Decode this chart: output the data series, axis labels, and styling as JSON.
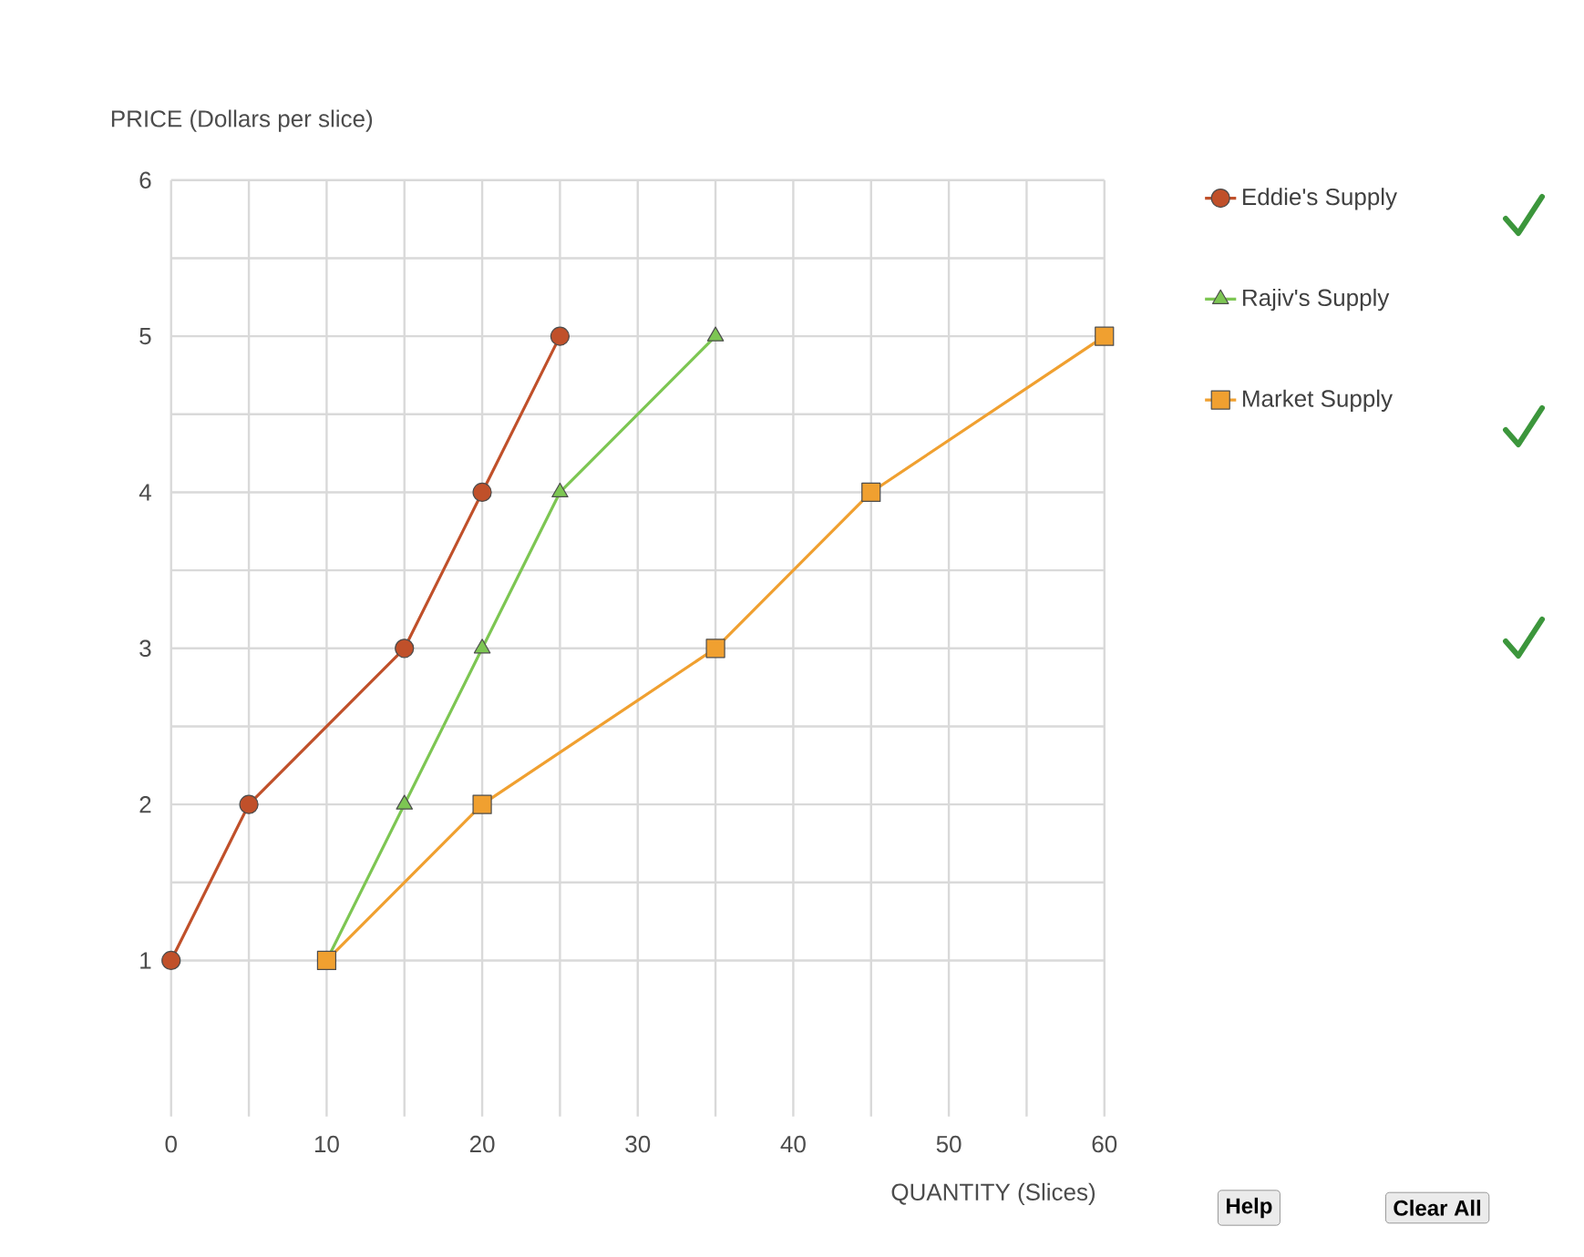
{
  "chart_data": {
    "type": "line",
    "xlabel": "QUANTITY (Slices)",
    "ylabel": "PRICE (Dollars per slice)",
    "series": [
      {
        "name": "Eddie's Supply",
        "color": "#c0502a",
        "marker": "circle",
        "x": [
          0,
          5,
          15,
          20,
          25
        ],
        "values": [
          1,
          2,
          3,
          4,
          5
        ]
      },
      {
        "name": "Rajiv's Supply",
        "color": "#7dc653",
        "marker": "triangle",
        "x": [
          10,
          15,
          20,
          25,
          35
        ],
        "values": [
          1,
          2,
          3,
          4,
          5
        ]
      },
      {
        "name": "Market Supply",
        "color": "#f0a030",
        "marker": "square",
        "x": [
          10,
          20,
          35,
          45,
          60
        ],
        "values": [
          1,
          2,
          3,
          4,
          5
        ]
      }
    ],
    "xlim": [
      0,
      60
    ],
    "xticks": [
      0,
      10,
      20,
      30,
      40,
      50,
      60
    ],
    "ylim": [
      0,
      6
    ],
    "yticks": [
      1,
      2,
      3,
      4,
      5,
      6
    ],
    "grid": true,
    "legend": "top right",
    "line_style": "solid",
    "annotations": [
      "Help",
      "Clear All"
    ]
  }
}
